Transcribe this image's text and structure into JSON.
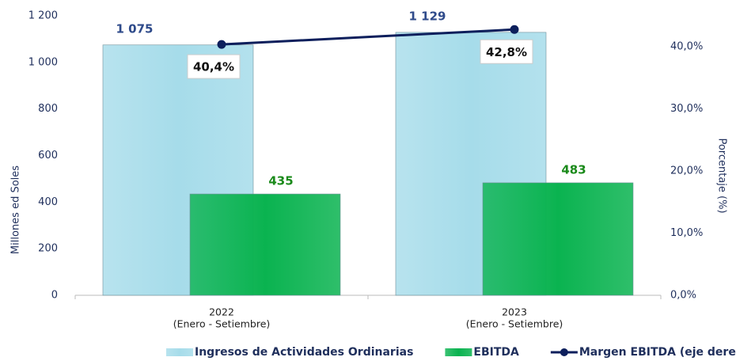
{
  "chart_data": {
    "type": "bar-line",
    "categories": [
      [
        "2022",
        "(Enero -  Setiembre)"
      ],
      [
        "2023",
        "(Enero -  Setiembre)"
      ]
    ],
    "series": [
      {
        "name": "Ingresos de Actividades Ordinarias",
        "type": "bar",
        "color": "#a6dcea",
        "values": [
          1075,
          1129
        ],
        "value_labels": [
          "1 075",
          "1 129"
        ]
      },
      {
        "name": "EBITDA",
        "type": "bar",
        "color": "#0ab350",
        "values": [
          435,
          483
        ]
      },
      {
        "name": "Margen EBITDA (eje derecho)",
        "type": "line",
        "axis": "y2",
        "color": "#0d1f5c",
        "values": [
          40.4,
          42.8
        ],
        "value_labels": [
          "40,4%",
          "42,8%"
        ]
      }
    ],
    "y_label": "Millones ed Soles",
    "y2_label": "Porcentaje (%)",
    "ylim": [
      0,
      1200
    ],
    "yticks": [
      0,
      200,
      400,
      600,
      800,
      {
        "value": 1000,
        "label": "1 000"
      },
      {
        "value": 1200,
        "label": "1 200"
      }
    ],
    "y2lim": [
      0,
      45
    ],
    "y2ticks": [
      {
        "value": 0,
        "label": "0,0%"
      },
      {
        "value": 10,
        "label": "10,0%"
      },
      {
        "value": 20,
        "label": "20,0%"
      },
      {
        "value": 30,
        "label": "30,0%"
      },
      {
        "value": 40,
        "label": "40,0%"
      }
    ]
  }
}
